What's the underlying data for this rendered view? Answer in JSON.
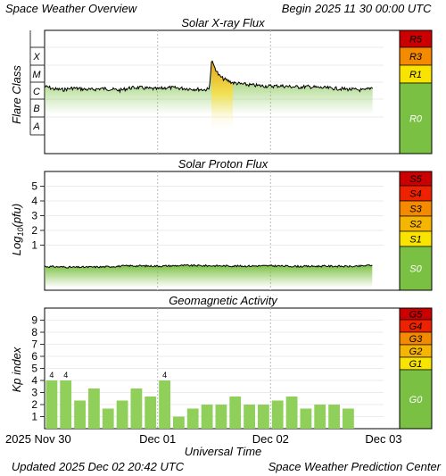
{
  "header": {
    "title": "Space Weather Overview",
    "begin_label": "Begin",
    "begin_value": "2025 11 30 00:00 UTC"
  },
  "footer": {
    "updated_label": "Updated",
    "updated_value": "2025 Dec 02 20:42 UTC",
    "source": "Space Weather Prediction Center"
  },
  "colors": {
    "bar_green": "#8fcf5a",
    "scale_green": "#7ac143",
    "level_red_dark": "#cc0000",
    "level_red": "#ee2200",
    "level_orange": "#f38a00",
    "level_amber": "#f6b500",
    "level_yellow": "#f8e400"
  },
  "chart_data": [
    {
      "type": "area",
      "title": "Solar X-ray Flux",
      "ylabel": "Flare Class",
      "y_scale": "log",
      "y_ticks": [
        "A",
        "B",
        "C",
        "M",
        "X"
      ],
      "x_range": [
        "2025-11-30 00:00",
        "2025-12-03 00:00"
      ],
      "series": [
        {
          "x_hours": [
            0,
            1,
            2,
            4,
            6,
            8,
            10,
            12,
            14,
            16,
            18,
            20,
            22,
            24,
            26,
            28,
            30,
            32,
            34,
            35,
            35.5,
            36,
            37,
            38,
            40,
            42,
            44,
            46,
            48,
            50,
            52,
            54,
            56,
            58,
            60,
            62,
            64,
            66,
            68,
            69.7
          ],
          "values": [
            "C1.8",
            "C1.6",
            "C1.3",
            "C1.2",
            "C1.5",
            "C1.3",
            "C1.2",
            "C1.4",
            "C1.3",
            "C1.1",
            "C1.5",
            "C1.6",
            "C1.4",
            "C1.3",
            "C1.6",
            "C1.5",
            "C1.4",
            "C1.3",
            "C1.2",
            "C1.3",
            "M7",
            "M3",
            "C8",
            "C5",
            "C3",
            "C2.5",
            "C2.2",
            "C2",
            "C1.9",
            "C2",
            "C1.8",
            "C1.7",
            "C1.8",
            "C1.6",
            "C1.5",
            "C1.4",
            "C1.3",
            "C1.2",
            "C1.1",
            "C1.7"
          ]
        }
      ],
      "scale_levels": [
        {
          "label": "R5",
          "color": "#cc0000"
        },
        {
          "label": "R3",
          "color": "#f38a00"
        },
        {
          "label": "R1",
          "color": "#f8e400"
        },
        {
          "label": "R0",
          "color": "#7ac143"
        }
      ]
    },
    {
      "type": "area",
      "title": "Solar Proton Flux",
      "ylabel": "Log10(pfu)",
      "ylim": [
        -1,
        6
      ],
      "y_ticks": [
        1,
        2,
        3,
        4,
        5
      ],
      "x_range": [
        "2025-11-30 00:00",
        "2025-12-03 00:00"
      ],
      "series": [
        {
          "x_hours": [
            0,
            6,
            12,
            18,
            24,
            30,
            36,
            42,
            48,
            54,
            60,
            66,
            69.7
          ],
          "values": [
            -0.45,
            -0.5,
            -0.48,
            -0.4,
            -0.42,
            -0.38,
            -0.4,
            -0.42,
            -0.4,
            -0.44,
            -0.42,
            -0.45,
            -0.35
          ]
        }
      ],
      "scale_levels": [
        {
          "label": "S5",
          "color": "#cc0000"
        },
        {
          "label": "S4",
          "color": "#ee2200"
        },
        {
          "label": "S3",
          "color": "#f38a00"
        },
        {
          "label": "S2",
          "color": "#f6b500"
        },
        {
          "label": "S1",
          "color": "#f8e400"
        },
        {
          "label": "S0",
          "color": "#7ac143"
        }
      ]
    },
    {
      "type": "bar",
      "title": "Geomagnetic Activity",
      "ylabel": "Kp index",
      "ylim": [
        0,
        10
      ],
      "y_ticks": [
        1,
        2,
        3,
        4,
        5,
        6,
        7,
        8,
        9
      ],
      "xlabel": "Universal Time",
      "x_tick_labels": [
        "2025 Nov 30",
        "Dec 01",
        "Dec 02",
        "Dec 03"
      ],
      "bar_hours": [
        0,
        3,
        6,
        9,
        12,
        15,
        18,
        21,
        24,
        27,
        30,
        33,
        36,
        39,
        42,
        45,
        48,
        51,
        54,
        57,
        60,
        63
      ],
      "values": [
        4,
        4,
        2.33,
        3.33,
        1.67,
        2.33,
        3.33,
        2.67,
        4,
        1,
        1.67,
        2,
        2,
        2.67,
        2,
        2,
        2.33,
        2.67,
        1.67,
        2,
        2,
        1.67
      ],
      "bar_labels": [
        "4",
        "4",
        "",
        "",
        "",
        "",
        "",
        "",
        "4",
        "",
        "",
        "",
        "",
        "",
        "",
        "",
        "",
        "",
        "",
        "",
        "",
        ""
      ],
      "scale_levels": [
        {
          "label": "G5",
          "color": "#cc0000"
        },
        {
          "label": "G4",
          "color": "#ee2200"
        },
        {
          "label": "G3",
          "color": "#f38a00"
        },
        {
          "label": "G2",
          "color": "#f6b500"
        },
        {
          "label": "G1",
          "color": "#f8e400"
        },
        {
          "label": "G0",
          "color": "#7ac143"
        }
      ]
    }
  ]
}
